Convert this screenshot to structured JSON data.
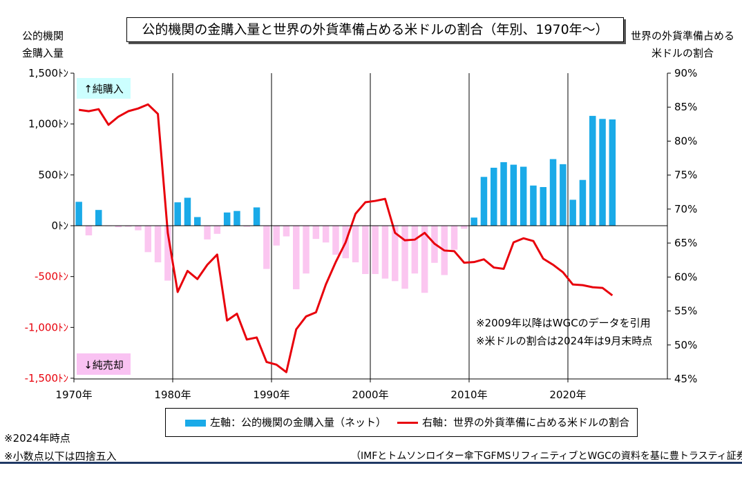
{
  "title": "公的機関の金購入量と世界の外貨準備占める米ドルの割合（年別、1970年～）",
  "left_axis_label": [
    "公的機関",
    "金購入量"
  ],
  "right_axis_label": [
    "世界の外貨準備占める",
    "米ドルの割合"
  ],
  "annotations": {
    "net_buy": "↑純購入",
    "net_sell": "↓純売却",
    "note1": "※2009年以降はWGCのデータを引用",
    "note2": "※米ドルの割合は2024年は9月末時点"
  },
  "legend": {
    "bars": "左軸：公的機関の金購入量（ネット）",
    "line": "右軸：世界の外貨準備に占める米ドルの割合"
  },
  "footnotes": [
    "※2024年時点",
    "※小数点以下は四捨五入"
  ],
  "source": "（IMFとトムソンロイター傘下GFMSリフィニティブとWGCの資料を基に豊トラスティ証券作成）",
  "colors": {
    "bar_positive": "#1aaae8",
    "bar_negative": "#fbc6f0",
    "line": "#e8000b",
    "neg_tick": "#e8000b"
  },
  "chart_data": {
    "type": "bar+line",
    "x_labels": [
      "1970年",
      "1980年",
      "1990年",
      "2000年",
      "2010年",
      "2020年"
    ],
    "years": [
      1970,
      1971,
      1972,
      1973,
      1974,
      1975,
      1976,
      1977,
      1978,
      1979,
      1980,
      1981,
      1982,
      1983,
      1984,
      1985,
      1986,
      1987,
      1988,
      1989,
      1990,
      1991,
      1992,
      1993,
      1994,
      1995,
      1996,
      1997,
      1998,
      1999,
      2000,
      2001,
      2002,
      2003,
      2004,
      2005,
      2006,
      2007,
      2008,
      2009,
      2010,
      2011,
      2012,
      2013,
      2014,
      2015,
      2016,
      2017,
      2018,
      2019,
      2020,
      2021,
      2022,
      2023,
      2024
    ],
    "left_axis": {
      "ylim": [
        -1500,
        1500
      ],
      "ticks": [
        1500,
        1000,
        500,
        0,
        -500,
        -1000,
        -1500
      ],
      "tick_labels": [
        "1,500ﾄﾝ",
        "1,000ﾄﾝ",
        "500ﾄﾝ",
        "0ﾄﾝ",
        "-500ﾄﾝ",
        "-1,000ﾄﾝ",
        "-1,500ﾄﾝ"
      ]
    },
    "right_axis": {
      "ylim": [
        45,
        90
      ],
      "ticks": [
        90,
        85,
        80,
        75,
        70,
        65,
        60,
        55,
        50,
        45
      ],
      "tick_labels": [
        "90%",
        "85%",
        "80%",
        "75%",
        "70%",
        "65%",
        "60%",
        "55%",
        "50%",
        "45%"
      ]
    },
    "series": [
      {
        "name": "左軸：公的機関の金購入量（ネット）",
        "axis": "left",
        "type": "bar",
        "values": [
          235,
          -95,
          155,
          -5,
          -15,
          -10,
          -45,
          -260,
          -360,
          -540,
          230,
          275,
          85,
          -135,
          -80,
          130,
          145,
          -10,
          180,
          -425,
          -195,
          -105,
          -625,
          -470,
          -130,
          -165,
          -285,
          -320,
          -360,
          -475,
          -475,
          -520,
          -545,
          -620,
          -470,
          -660,
          -365,
          -485,
          -235,
          -30,
          80,
          480,
          570,
          625,
          600,
          580,
          395,
          380,
          655,
          605,
          255,
          450,
          1080,
          1050,
          1045
        ]
      },
      {
        "name": "右軸：世界の外貨準備に占める米ドルの割合",
        "axis": "right",
        "type": "line",
        "values": [
          84.6,
          84.4,
          84.7,
          82.4,
          83.6,
          84.4,
          84.8,
          85.4,
          84.0,
          66.5,
          57.8,
          60.9,
          59.7,
          61.8,
          63.3,
          53.6,
          54.6,
          50.8,
          51.1,
          47.5,
          47.1,
          46.0,
          52.3,
          54.2,
          54.8,
          58.9,
          62.2,
          65.1,
          69.3,
          71.0,
          71.2,
          71.5,
          66.5,
          65.4,
          65.5,
          66.5,
          64.9,
          63.9,
          63.8,
          62.1,
          62.2,
          62.6,
          61.4,
          61.2,
          65.1,
          65.7,
          65.3,
          62.7,
          61.8,
          60.7,
          58.9,
          58.8,
          58.5,
          58.4,
          57.3
        ]
      }
    ]
  }
}
